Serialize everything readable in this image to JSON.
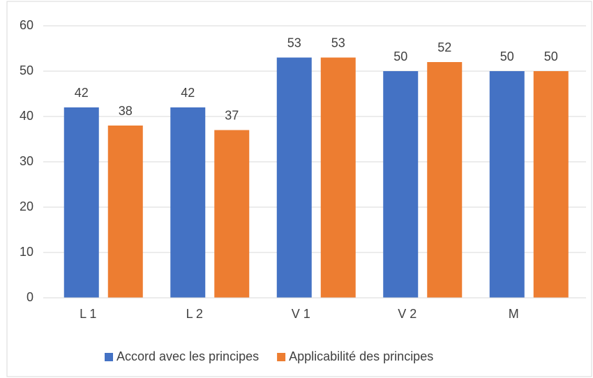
{
  "chart_data": {
    "type": "bar",
    "categories": [
      "L 1",
      "L 2",
      "V 1",
      "V 2",
      "M"
    ],
    "series": [
      {
        "name": "Accord avec les principes",
        "color": "#4472c4",
        "values": [
          42,
          42,
          53,
          50,
          50
        ]
      },
      {
        "name": "Applicabilité des principes",
        "color": "#ed7d31",
        "values": [
          38,
          37,
          53,
          52,
          50
        ]
      }
    ],
    "ylim": [
      0,
      60
    ],
    "yticks": [
      0,
      10,
      20,
      30,
      40,
      50,
      60
    ],
    "grid": true,
    "legend": "bottom"
  }
}
